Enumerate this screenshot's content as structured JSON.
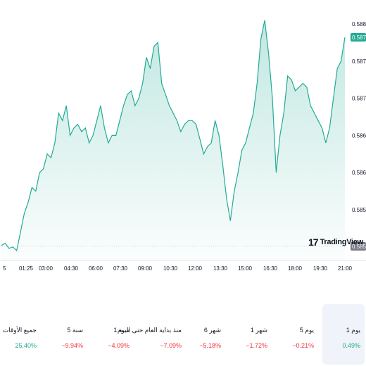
{
  "chart_data": {
    "type": "area",
    "x_ticks": [
      "5",
      "01:25",
      "03:00",
      "04:30",
      "06:00",
      "07:30",
      "09:00",
      "10:30",
      "12:00",
      "13:30",
      "15:00",
      "16:30",
      "18:00",
      "19:30",
      "21:00"
    ],
    "y_ticks": [
      "0.58800",
      "0.58750",
      "0.58700",
      "0.58650",
      "0.58600",
      "0.58550"
    ],
    "ylim": [
      0.58518,
      0.58802
    ],
    "last_value": "0.58782",
    "base_value": "0.58502",
    "series": [
      {
        "values": [
          0.58502,
          0.58505,
          0.58498,
          0.585,
          0.58495,
          0.5852,
          0.58545,
          0.5856,
          0.5858,
          0.58575,
          0.586,
          0.58605,
          0.58625,
          0.5862,
          0.5864,
          0.5868,
          0.5867,
          0.5869,
          0.5865,
          0.5866,
          0.58665,
          0.58655,
          0.5866,
          0.5864,
          0.5865,
          0.5867,
          0.5869,
          0.5866,
          0.5864,
          0.5865,
          0.5865,
          0.5867,
          0.5869,
          0.58705,
          0.5871,
          0.5869,
          0.587,
          0.5872,
          0.58755,
          0.5874,
          0.5877,
          0.58775,
          0.5872,
          0.58705,
          0.5869,
          0.5868,
          0.5867,
          0.58655,
          0.58665,
          0.5867,
          0.5867,
          0.58665,
          0.58645,
          0.58625,
          0.58635,
          0.5864,
          0.5867,
          0.5865,
          0.5861,
          0.58565,
          0.58535,
          0.58575,
          0.586,
          0.5863,
          0.5864,
          0.5866,
          0.5868,
          0.5872,
          0.5878,
          0.58805,
          0.5876,
          0.587,
          0.586,
          0.5865,
          0.5868,
          0.5873,
          0.58725,
          0.5871,
          0.58715,
          0.5872,
          0.58715,
          0.5869,
          0.5868,
          0.5867,
          0.5866,
          0.5864,
          0.5866,
          0.587,
          0.5874,
          0.5875,
          0.58782
        ]
      }
    ]
  },
  "periods": [
    {
      "label": "1 يوم",
      "change": "0.49%",
      "direction": "up",
      "active": true
    },
    {
      "label": "5 يوم",
      "change": "−0.21%",
      "direction": "down",
      "active": false
    },
    {
      "label": "1 شهر",
      "change": "−1.72%",
      "direction": "down",
      "active": false
    },
    {
      "label": "6 شهر",
      "change": "−5.18%",
      "direction": "down",
      "active": false
    },
    {
      "label": "منذ بداية العام حتى اليوم",
      "change": "−7.09%",
      "direction": "down",
      "active": false
    },
    {
      "label": "1 سنة",
      "change": "−4.09%",
      "direction": "down",
      "active": false
    },
    {
      "label": "5 سنة",
      "change": "−9.94%",
      "direction": "down",
      "active": false
    },
    {
      "label": "جميع الأوقات",
      "change": "25.40%",
      "direction": "up",
      "active": false
    }
  ],
  "logo": {
    "mark": "17",
    "text": "TradingView"
  },
  "colors": {
    "line": "#22ab94",
    "fill": "#22ab94",
    "up": "#22ab94",
    "down": "#f23645",
    "badge_last": "#22ab94",
    "badge_base": "#787b86"
  }
}
